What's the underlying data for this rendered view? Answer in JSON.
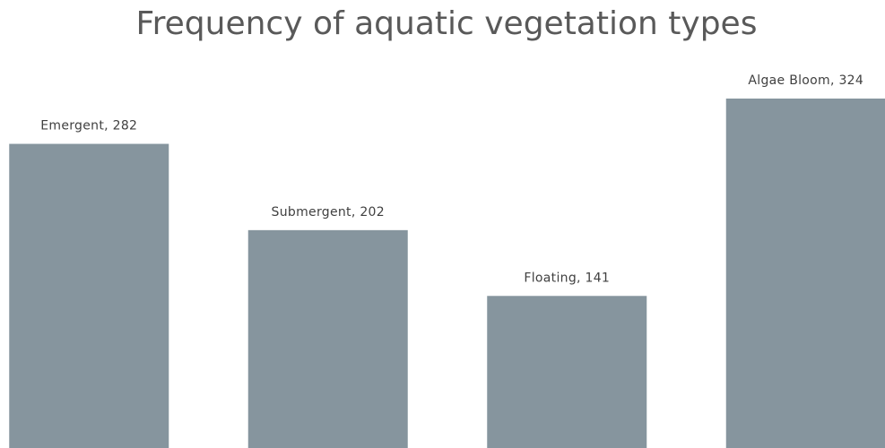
{
  "chart_data": {
    "type": "bar",
    "title": "Frequency of aquatic vegetation types",
    "values": [
      282,
      202,
      141,
      324
    ],
    "value_labels": [
      "Emergent, 282",
      "Submergent, 202",
      "Floating, 141",
      "Algae Bloom, 324"
    ],
    "color": "#86959e"
  }
}
